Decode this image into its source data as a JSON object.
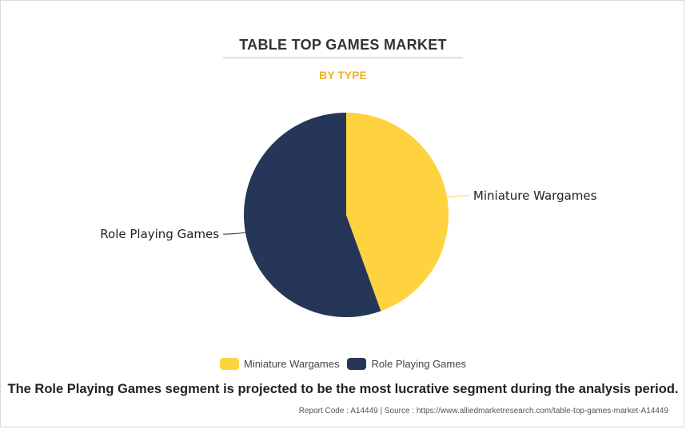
{
  "header": {
    "title": "TABLE TOP GAMES MARKET",
    "subtitle": "BY TYPE"
  },
  "colors": {
    "subtitle": "#f0b323",
    "miniature": "#ffd23f",
    "role_playing": "#253659"
  },
  "chart_data": {
    "type": "pie",
    "title": "TABLE TOP GAMES MARKET",
    "subtitle": "BY TYPE",
    "categories": [
      "Miniature Wargames",
      "Role Playing Games"
    ],
    "values": [
      44.5,
      55.5
    ],
    "unit": "%",
    "legend_position": "bottom-center"
  },
  "legend": [
    {
      "label": "Miniature Wargames",
      "color": "#ffd23f"
    },
    {
      "label": "Role Playing Games",
      "color": "#253659"
    }
  ],
  "statement": "The Role Playing Games segment is projected to be the most lucrative segment during the analysis period.",
  "footer": {
    "text": "Report Code : A14449  |  Source : https://www.alliedmarketresearch.com/table-top-games-market-A14449"
  }
}
